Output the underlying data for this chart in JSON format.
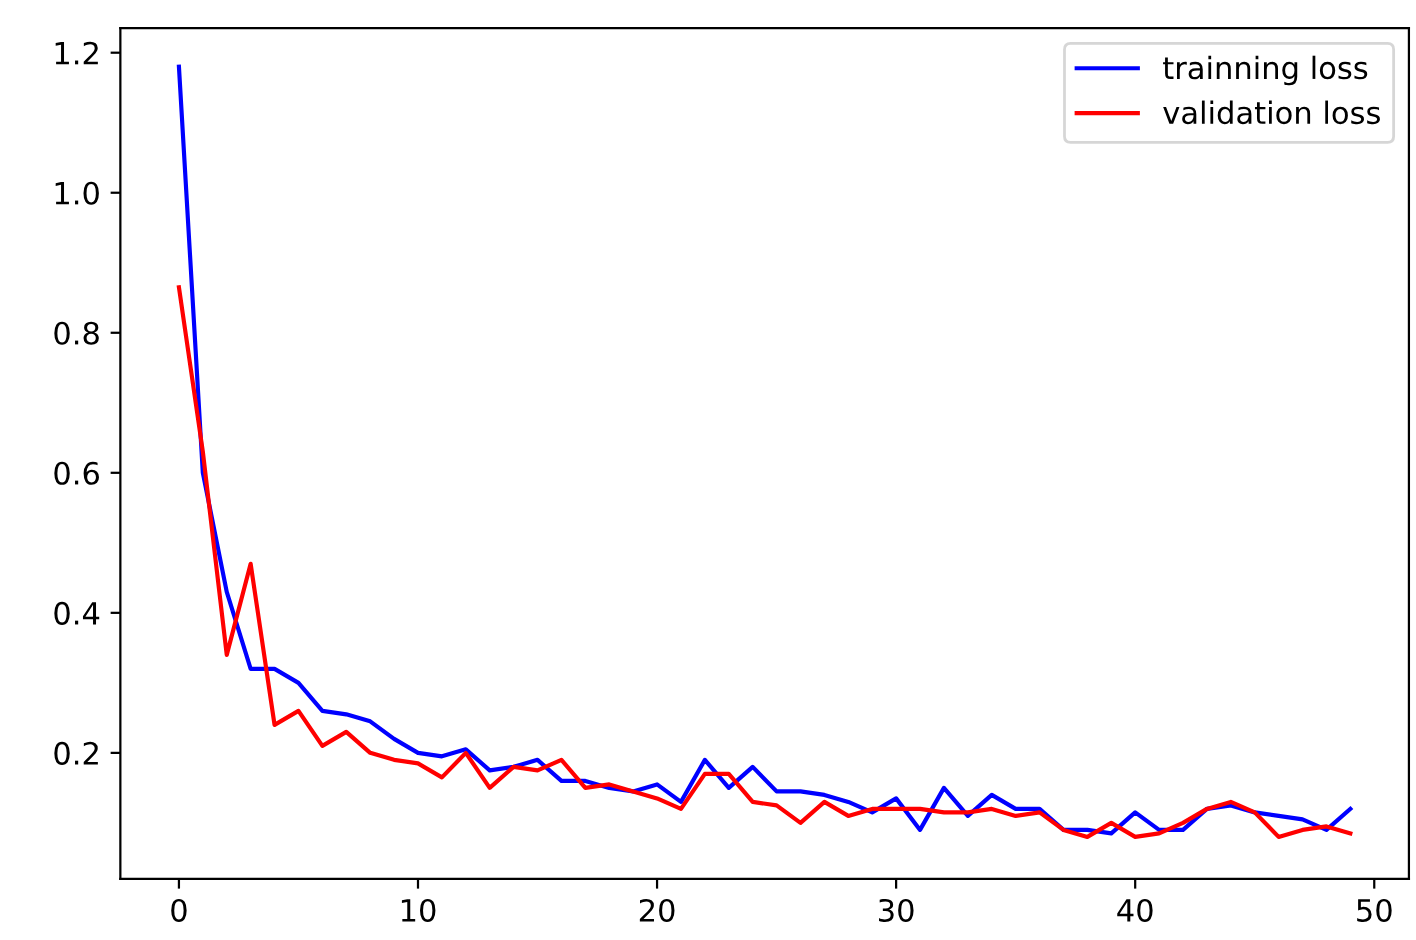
{
  "chart_data": {
    "type": "line",
    "x": [
      0,
      1,
      2,
      3,
      4,
      5,
      6,
      7,
      8,
      9,
      10,
      11,
      12,
      13,
      14,
      15,
      16,
      17,
      18,
      19,
      20,
      21,
      22,
      23,
      24,
      25,
      26,
      27,
      28,
      29,
      30,
      31,
      32,
      33,
      34,
      35,
      36,
      37,
      38,
      39,
      40,
      41,
      42,
      43,
      44,
      45,
      46,
      47,
      48,
      49
    ],
    "series": [
      {
        "name": "trainning loss",
        "color": "#0000ff",
        "values": [
          1.18,
          0.6,
          0.43,
          0.32,
          0.32,
          0.3,
          0.26,
          0.255,
          0.245,
          0.22,
          0.2,
          0.195,
          0.205,
          0.175,
          0.18,
          0.19,
          0.16,
          0.16,
          0.15,
          0.145,
          0.155,
          0.13,
          0.19,
          0.15,
          0.18,
          0.145,
          0.145,
          0.14,
          0.13,
          0.115,
          0.135,
          0.09,
          0.15,
          0.11,
          0.14,
          0.12,
          0.12,
          0.09,
          0.09,
          0.085,
          0.115,
          0.09,
          0.09,
          0.12,
          0.125,
          0.115,
          0.11,
          0.105,
          0.09,
          0.12
        ]
      },
      {
        "name": "validation loss",
        "color": "#ff0000",
        "values": [
          0.865,
          0.63,
          0.34,
          0.47,
          0.24,
          0.26,
          0.21,
          0.23,
          0.2,
          0.19,
          0.185,
          0.165,
          0.2,
          0.15,
          0.18,
          0.175,
          0.19,
          0.15,
          0.155,
          0.145,
          0.135,
          0.12,
          0.17,
          0.17,
          0.13,
          0.125,
          0.1,
          0.13,
          0.11,
          0.12,
          0.12,
          0.12,
          0.115,
          0.115,
          0.12,
          0.11,
          0.115,
          0.09,
          0.08,
          0.1,
          0.08,
          0.085,
          0.1,
          0.12,
          0.13,
          0.115,
          0.08,
          0.09,
          0.095,
          0.085
        ]
      }
    ],
    "xlim": [
      -2.45,
      51.45
    ],
    "xticks": [
      0,
      10,
      20,
      30,
      40,
      50
    ],
    "ylim": [
      0.02,
      1.235
    ],
    "yticks": [
      {
        "value": 0.2,
        "label": "0.2"
      },
      {
        "value": 0.4,
        "label": "0.4"
      },
      {
        "value": 0.6,
        "label": "0.6"
      },
      {
        "value": 0.8,
        "label": "0.8"
      },
      {
        "value": 1.0,
        "label": "1.0"
      },
      {
        "value": 1.2,
        "label": "1.2"
      }
    ],
    "legend": "top right",
    "grid": false
  }
}
